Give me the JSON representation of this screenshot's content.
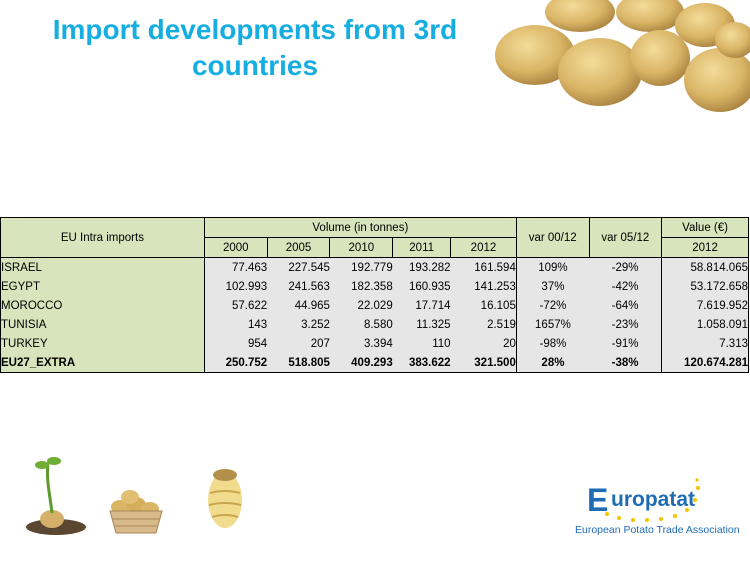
{
  "slide": {
    "title_line1": "Import developments from 3rd",
    "title_line2": "countries"
  },
  "table": {
    "corner_label": "EU Intra imports",
    "volume_header": "Volume (in tonnes)",
    "var1_header": "var 00/12",
    "var2_header": "var 05/12",
    "value_header": "Value (€)",
    "years": [
      "2000",
      "2005",
      "2010",
      "2011",
      "2012"
    ],
    "value_year": "2012",
    "rows": [
      {
        "country": "ISRAEL",
        "v2000": "77.463",
        "v2005": "227.545",
        "v2010": "192.779",
        "v2011": "193.282",
        "v2012": "161.594",
        "var0012": "109%",
        "var0512": "-29%",
        "value2012": "58.814.065"
      },
      {
        "country": "EGYPT",
        "v2000": "102.993",
        "v2005": "241.563",
        "v2010": "182.358",
        "v2011": "160.935",
        "v2012": "141.253",
        "var0012": "37%",
        "var0512": "-42%",
        "value2012": "53.172.658"
      },
      {
        "country": "MOROCCO",
        "v2000": "57.622",
        "v2005": "44.965",
        "v2010": "22.029",
        "v2011": "17.714",
        "v2012": "16.105",
        "var0012": "-72%",
        "var0512": "-64%",
        "value2012": "7.619.952"
      },
      {
        "country": "TUNISIA",
        "v2000": "143",
        "v2005": "3.252",
        "v2010": "8.580",
        "v2011": "11.325",
        "v2012": "2.519",
        "var0012": "1657%",
        "var0512": "-23%",
        "value2012": "1.058.091"
      },
      {
        "country": "TURKEY",
        "v2000": "954",
        "v2005": "207",
        "v2010": "3.394",
        "v2011": "110",
        "v2012": "20",
        "var0012": "-98%",
        "var0512": "-91%",
        "value2012": "7.313"
      },
      {
        "country": "EU27_EXTRA",
        "v2000": "250.752",
        "v2005": "518.805",
        "v2010": "409.293",
        "v2011": "383.622",
        "v2012": "321.500",
        "var0012": "28%",
        "var0512": "-38%",
        "value2012": "120.674.281"
      }
    ]
  },
  "logo": {
    "initial": "E",
    "word": "uropatat",
    "subtitle": "European Potato Trade Association"
  },
  "colors": {
    "title": "#16aee0",
    "header_bg": "#d7e4bc",
    "cell_bg": "#e6e6e6",
    "logo_blue": "#1f6cb5",
    "star_yellow": "#f5c400"
  },
  "icons": [
    "potato-pile-image",
    "potato-sprout-icon",
    "potato-basket-icon",
    "peeled-potato-icon",
    "eu-stars-icon"
  ]
}
